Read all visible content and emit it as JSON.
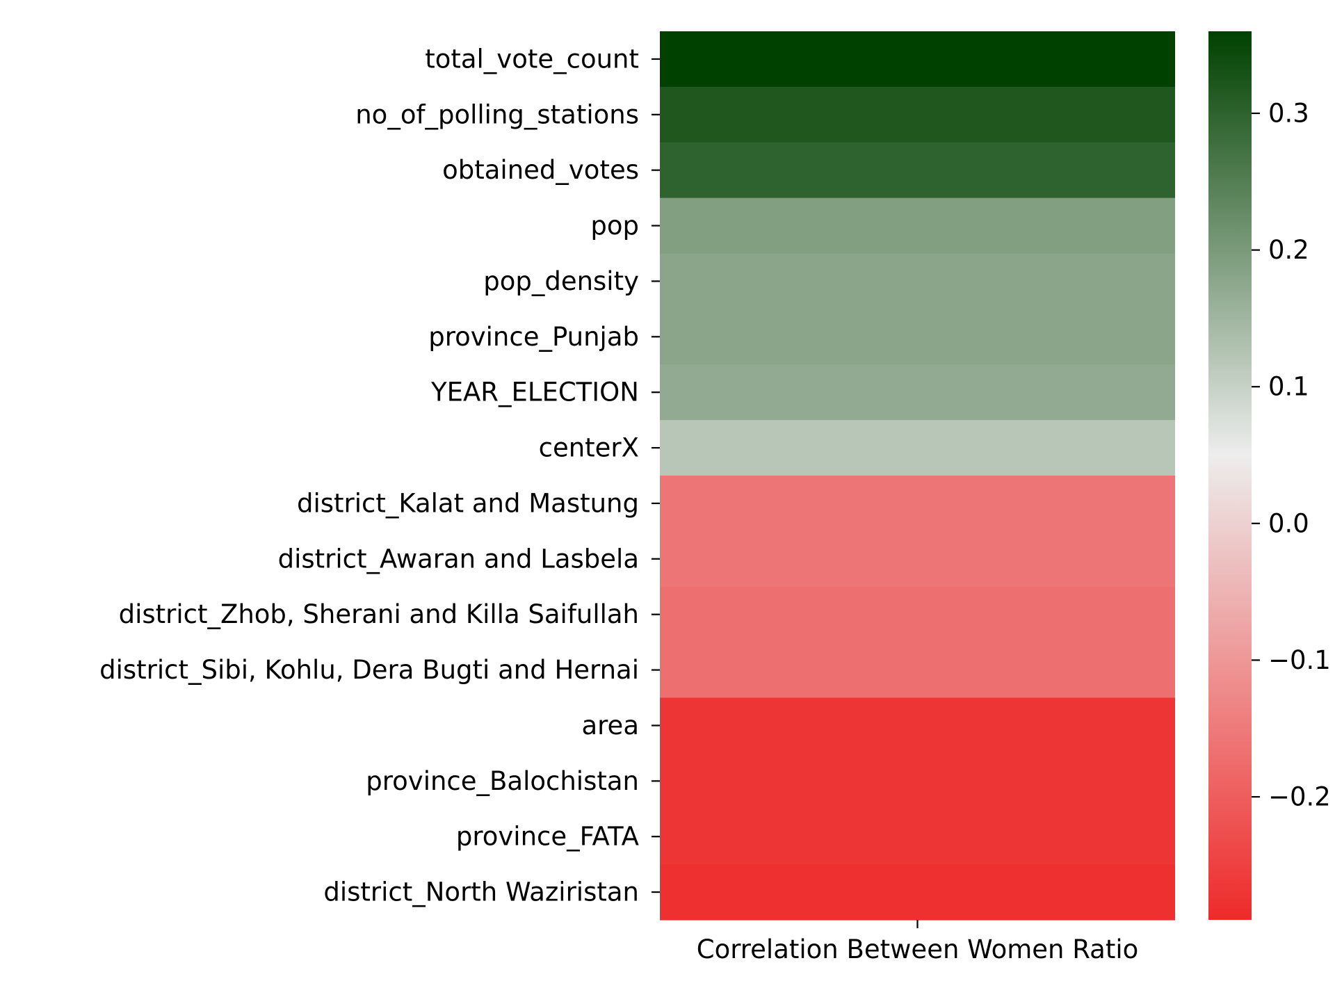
{
  "chart_data": {
    "type": "heatmap",
    "title": "",
    "xlabel": "",
    "ylabel": "",
    "x_tick_labels": [
      "Correlation Between Women Ratio"
    ],
    "categories": [
      "total_vote_count",
      "no_of_polling_stations",
      "obtained_votes",
      "pop",
      "pop_density",
      "province_Punjab",
      "YEAR_ELECTION",
      "centerX",
      "district_Kalat and Mastung",
      "district_Awaran and Lasbela",
      "district_Zhob, Sherani and Killa Saifullah",
      "district_Sibi, Kohlu, Dera Bugti and Hernai",
      "area",
      "province_Balochistan",
      "province_FATA",
      "district_North Waziristan"
    ],
    "values": [
      0.36,
      0.32,
      0.3,
      0.19,
      0.18,
      0.18,
      0.17,
      0.12,
      -0.16,
      -0.16,
      -0.17,
      -0.17,
      -0.27,
      -0.27,
      -0.27,
      -0.28
    ],
    "colorbar": {
      "range": [
        -0.29,
        0.36
      ],
      "ticks": [
        -0.2,
        -0.1,
        0.0,
        0.1,
        0.2,
        0.3
      ],
      "tick_labels": [
        "−0.2",
        "−0.1",
        "0.0",
        "0.1",
        "0.2",
        "0.3"
      ]
    },
    "colors": {
      "low": "#ee2a2a",
      "mid": "#ededed",
      "high": "#004100"
    },
    "grid": false,
    "legend": "colorbar at right"
  }
}
